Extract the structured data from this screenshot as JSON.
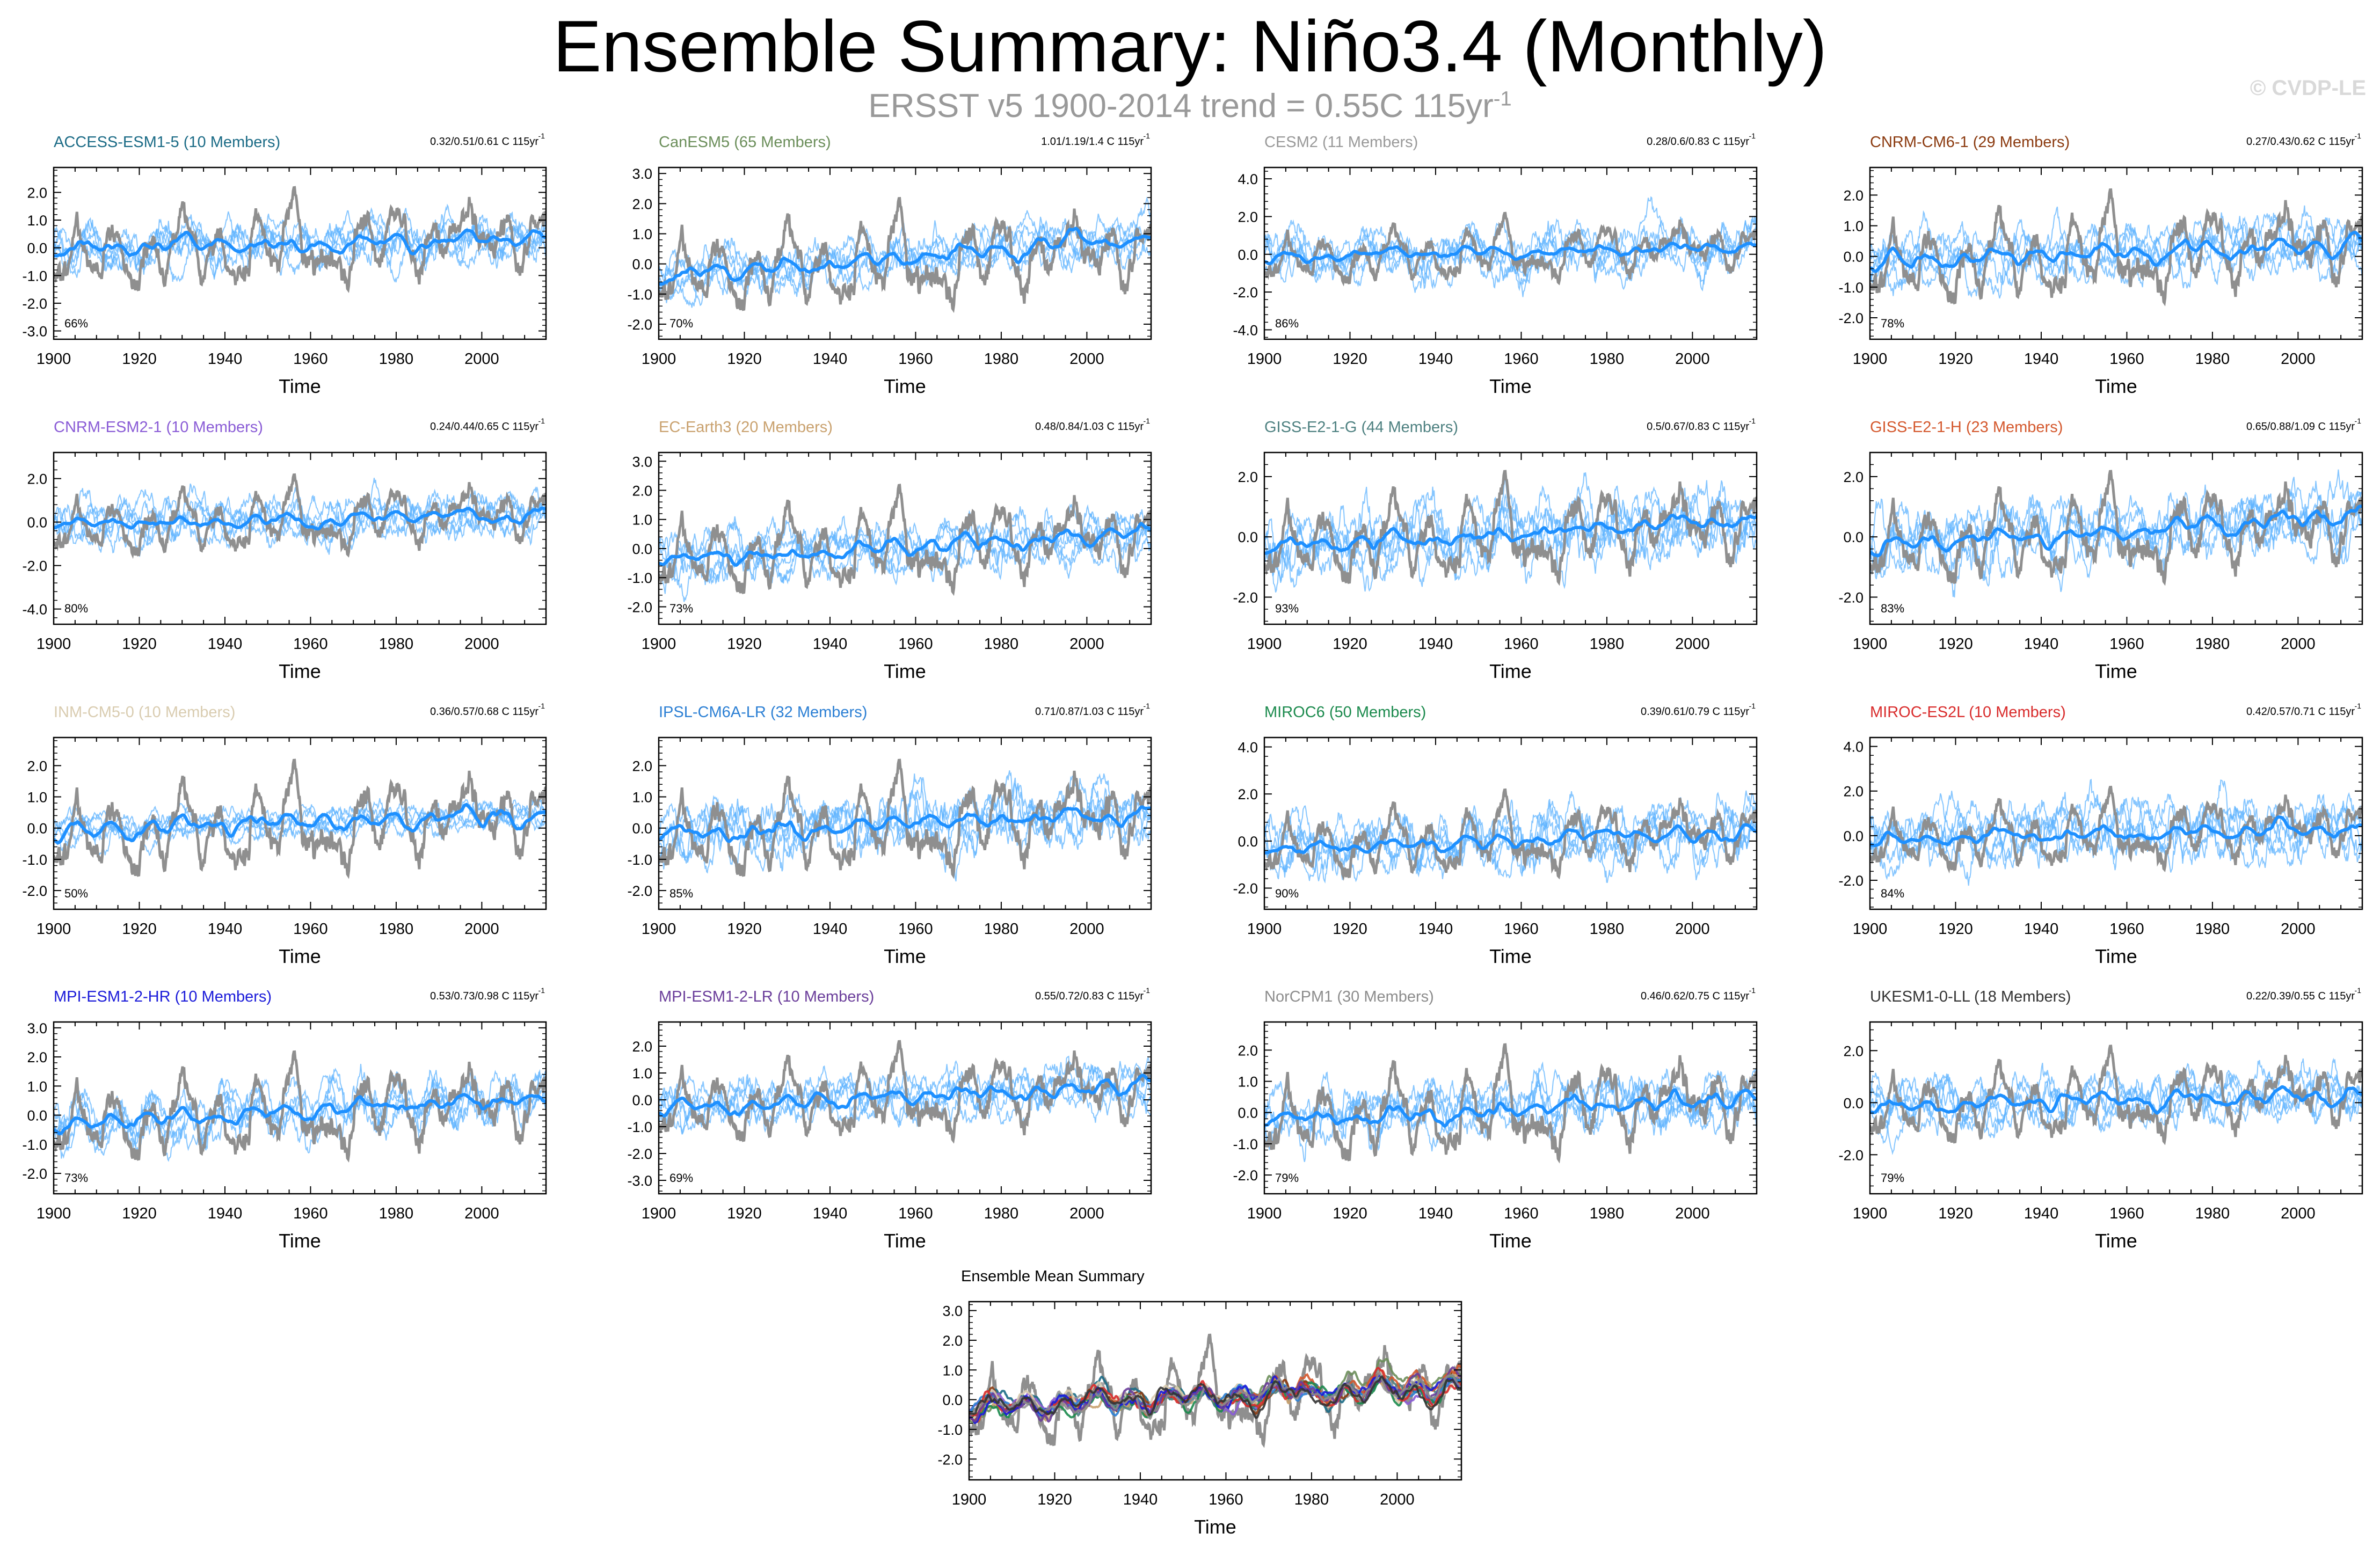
{
  "title": "Ensemble Summary: Niño3.4 (Monthly)",
  "subtitle": "ERSST v5 1900-2014 trend = 0.55C 115yr",
  "subtitle_exp": "-1",
  "copyright": "© CVDP-LE",
  "colors": {
    "obs": "#8f8f8f",
    "member": "#5eb3ff",
    "mean": "#1e90ff",
    "axis": "#000000"
  },
  "chart_data": [
    {
      "type": "line",
      "title": "ACCESS-ESM1-5 (10 Members)",
      "title_color": "#1b6b86",
      "trend_text": "0.32/0.51/0.61 C 115yr",
      "trend_exp": "-1",
      "percent": "66%",
      "xlabel": "Time",
      "xlim": [
        1900,
        2015
      ],
      "xticks": [
        1900,
        1920,
        1940,
        1960,
        1980,
        2000
      ],
      "ylim": [
        -3.3,
        2.9
      ],
      "yticks": [
        -3,
        -2,
        -1,
        0,
        1,
        2
      ],
      "ytick_labels": [
        "-3.0",
        "-2.0",
        "-1.0",
        "0.0",
        "1.0",
        "2.0"
      ],
      "mean_start": -0.05,
      "mean_end": 0.35,
      "spread": 0.9
    },
    {
      "type": "line",
      "title": "CanESM5 (65 Members)",
      "title_color": "#6b8e5a",
      "trend_text": "1.01/1.19/1.4 C 115yr",
      "trend_exp": "-1",
      "percent": "70%",
      "xlabel": "Time",
      "xlim": [
        1900,
        2015
      ],
      "xticks": [
        1900,
        1920,
        1940,
        1960,
        1980,
        2000
      ],
      "ylim": [
        -2.5,
        3.2
      ],
      "yticks": [
        -2,
        -1,
        0,
        1,
        2,
        3
      ],
      "ytick_labels": [
        "-2.0",
        "-1.0",
        "0.0",
        "1.0",
        "2.0",
        "3.0"
      ],
      "mean_start": -0.5,
      "mean_end": 0.9,
      "spread": 0.8
    },
    {
      "type": "line",
      "title": "CESM2 (11 Members)",
      "title_color": "#999999",
      "trend_text": "0.28/0.6/0.83 C 115yr",
      "trend_exp": "-1",
      "percent": "86%",
      "xlabel": "Time",
      "xlim": [
        1900,
        2015
      ],
      "xticks": [
        1900,
        1920,
        1940,
        1960,
        1980,
        2000
      ],
      "ylim": [
        -4.5,
        4.6
      ],
      "yticks": [
        -4,
        -2,
        0,
        2,
        4
      ],
      "ytick_labels": [
        "-4.0",
        "-2.0",
        "0.0",
        "2.0",
        "4.0"
      ],
      "mean_start": -0.2,
      "mean_end": 0.4,
      "spread": 1.4
    },
    {
      "type": "line",
      "title": "CNRM-CM6-1 (29 Members)",
      "title_color": "#8b3a0f",
      "trend_text": "0.27/0.43/0.62 C 115yr",
      "trend_exp": "-1",
      "percent": "78%",
      "xlabel": "Time",
      "xlim": [
        1900,
        2015
      ],
      "xticks": [
        1900,
        1920,
        1940,
        1960,
        1980,
        2000
      ],
      "ylim": [
        -2.7,
        2.9
      ],
      "yticks": [
        -2,
        -1,
        0,
        1,
        2
      ],
      "ytick_labels": [
        "-2.0",
        "-1.0",
        "0.0",
        "1.0",
        "2.0"
      ],
      "mean_start": -0.1,
      "mean_end": 0.35,
      "spread": 0.9
    },
    {
      "type": "line",
      "title": "CNRM-ESM2-1 (10 Members)",
      "title_color": "#8a5cd6",
      "trend_text": "0.24/0.44/0.65 C 115yr",
      "trend_exp": "-1",
      "percent": "80%",
      "xlabel": "Time",
      "xlim": [
        1900,
        2015
      ],
      "xticks": [
        1900,
        1920,
        1940,
        1960,
        1980,
        2000
      ],
      "ylim": [
        -4.7,
        3.2
      ],
      "yticks": [
        -4,
        -2,
        0,
        2
      ],
      "ytick_labels": [
        "-4.0",
        "-2.0",
        "0.0",
        "2.0"
      ],
      "mean_start": -0.1,
      "mean_end": 0.35,
      "spread": 1.1
    },
    {
      "type": "line",
      "title": "EC-Earth3 (20 Members)",
      "title_color": "#c9a16e",
      "trend_text": "0.48/0.84/1.03 C 115yr",
      "trend_exp": "-1",
      "percent": "73%",
      "xlabel": "Time",
      "xlim": [
        1900,
        2015
      ],
      "xticks": [
        1900,
        1920,
        1940,
        1960,
        1980,
        2000
      ],
      "ylim": [
        -2.6,
        3.3
      ],
      "yticks": [
        -2,
        -1,
        0,
        1,
        2,
        3
      ],
      "ytick_labels": [
        "-2.0",
        "-1.0",
        "0.0",
        "1.0",
        "2.0",
        "3.0"
      ],
      "mean_start": -0.4,
      "mean_end": 0.5,
      "spread": 0.9
    },
    {
      "type": "line",
      "title": "GISS-E2-1-G (44 Members)",
      "title_color": "#4d8080",
      "trend_text": "0.5/0.67/0.83 C 115yr",
      "trend_exp": "-1",
      "percent": "93%",
      "xlabel": "Time",
      "xlim": [
        1900,
        2015
      ],
      "xticks": [
        1900,
        1920,
        1940,
        1960,
        1980,
        2000
      ],
      "ylim": [
        -2.9,
        2.8
      ],
      "yticks": [
        -2,
        0,
        2
      ],
      "ytick_labels": [
        "-2.0",
        "0.0",
        "2.0"
      ],
      "mean_start": -0.35,
      "mean_end": 0.6,
      "spread": 1.2
    },
    {
      "type": "line",
      "title": "GISS-E2-1-H (23 Members)",
      "title_color": "#d4582d",
      "trend_text": "0.65/0.88/1.09 C 115yr",
      "trend_exp": "-1",
      "percent": "83%",
      "xlabel": "Time",
      "xlim": [
        1900,
        2015
      ],
      "xticks": [
        1900,
        1920,
        1940,
        1960,
        1980,
        2000
      ],
      "ylim": [
        -2.9,
        2.8
      ],
      "yticks": [
        -2,
        0,
        2
      ],
      "ytick_labels": [
        "-2.0",
        "0.0",
        "2.0"
      ],
      "mean_start": -0.35,
      "mean_end": 0.7,
      "spread": 1.1
    },
    {
      "type": "line",
      "title": "INM-CM5-0 (10 Members)",
      "title_color": "#d9ccb0",
      "trend_text": "0.36/0.57/0.68 C 115yr",
      "trend_exp": "-1",
      "percent": "50%",
      "xlabel": "Time",
      "xlim": [
        1900,
        2015
      ],
      "xticks": [
        1900,
        1920,
        1940,
        1960,
        1980,
        2000
      ],
      "ylim": [
        -2.6,
        2.9
      ],
      "yticks": [
        -2,
        -1,
        0,
        1,
        2
      ],
      "ytick_labels": [
        "-2.0",
        "-1.0",
        "0.0",
        "1.0",
        "2.0"
      ],
      "mean_start": -0.1,
      "mean_end": 0.45,
      "spread": 0.5
    },
    {
      "type": "line",
      "title": "IPSL-CM6A-LR (32 Members)",
      "title_color": "#2b7fd4",
      "trend_text": "0.71/0.87/1.03 C 115yr",
      "trend_exp": "-1",
      "percent": "85%",
      "xlabel": "Time",
      "xlim": [
        1900,
        2015
      ],
      "xticks": [
        1900,
        1920,
        1940,
        1960,
        1980,
        2000
      ],
      "ylim": [
        -2.6,
        2.9
      ],
      "yticks": [
        -2,
        -1,
        0,
        1,
        2
      ],
      "ytick_labels": [
        "-2.0",
        "-1.0",
        "0.0",
        "1.0",
        "2.0"
      ],
      "mean_start": -0.3,
      "mean_end": 0.6,
      "spread": 1.0
    },
    {
      "type": "line",
      "title": "MIROC6 (50 Members)",
      "title_color": "#1b8a4d",
      "trend_text": "0.39/0.61/0.79 C 115yr",
      "trend_exp": "-1",
      "percent": "90%",
      "xlabel": "Time",
      "xlim": [
        1900,
        2015
      ],
      "xticks": [
        1900,
        1920,
        1940,
        1960,
        1980,
        2000
      ],
      "ylim": [
        -2.9,
        4.4
      ],
      "yticks": [
        -2,
        0,
        2,
        4
      ],
      "ytick_labels": [
        "-2.0",
        "0.0",
        "2.0",
        "4.0"
      ],
      "mean_start": -0.3,
      "mean_end": 0.4,
      "spread": 1.3
    },
    {
      "type": "line",
      "title": "MIROC-ES2L (10 Members)",
      "title_color": "#d92b2b",
      "trend_text": "0.42/0.57/0.71 C 115yr",
      "trend_exp": "-1",
      "percent": "84%",
      "xlabel": "Time",
      "xlim": [
        1900,
        2015
      ],
      "xticks": [
        1900,
        1920,
        1940,
        1960,
        1980,
        2000
      ],
      "ylim": [
        -3.3,
        4.4
      ],
      "yticks": [
        -2,
        0,
        2,
        4
      ],
      "ytick_labels": [
        "-2.0",
        "0.0",
        "2.0",
        "4.0"
      ],
      "mean_start": -0.2,
      "mean_end": 0.35,
      "spread": 1.4
    },
    {
      "type": "line",
      "title": "MPI-ESM1-2-HR (10 Members)",
      "title_color": "#1a1ad9",
      "trend_text": "0.53/0.73/0.98 C 115yr",
      "trend_exp": "-1",
      "percent": "73%",
      "xlabel": "Time",
      "xlim": [
        1900,
        2015
      ],
      "xticks": [
        1900,
        1920,
        1940,
        1960,
        1980,
        2000
      ],
      "ylim": [
        -2.7,
        3.2
      ],
      "yticks": [
        -2,
        -1,
        0,
        1,
        2,
        3
      ],
      "ytick_labels": [
        "-2.0",
        "-1.0",
        "0.0",
        "1.0",
        "2.0",
        "3.0"
      ],
      "mean_start": -0.3,
      "mean_end": 0.6,
      "spread": 0.9
    },
    {
      "type": "line",
      "title": "MPI-ESM1-2-LR (10 Members)",
      "title_color": "#6a3d9a",
      "trend_text": "0.55/0.72/0.83 C 115yr",
      "trend_exp": "-1",
      "percent": "69%",
      "xlabel": "Time",
      "xlim": [
        1900,
        2015
      ],
      "xticks": [
        1900,
        1920,
        1940,
        1960,
        1980,
        2000
      ],
      "ylim": [
        -3.5,
        2.9
      ],
      "yticks": [
        -3,
        -2,
        -1,
        0,
        1,
        2
      ],
      "ytick_labels": [
        "-3.0",
        "-2.0",
        "-1.0",
        "0.0",
        "1.0",
        "2.0"
      ],
      "mean_start": -0.3,
      "mean_end": 0.5,
      "spread": 0.9
    },
    {
      "type": "line",
      "title": "NorCPM1 (30 Members)",
      "title_color": "#8c8c8c",
      "trend_text": "0.46/0.62/0.75 C 115yr",
      "trend_exp": "-1",
      "percent": "79%",
      "xlabel": "Time",
      "xlim": [
        1900,
        2015
      ],
      "xticks": [
        1900,
        1920,
        1940,
        1960,
        1980,
        2000
      ],
      "ylim": [
        -2.6,
        2.9
      ],
      "yticks": [
        -2,
        -1,
        0,
        1,
        2
      ],
      "ytick_labels": [
        "-2.0",
        "-1.0",
        "0.0",
        "1.0",
        "2.0"
      ],
      "mean_start": -0.2,
      "mean_end": 0.45,
      "spread": 0.9
    },
    {
      "type": "line",
      "title": "UKESM1-0-LL (18 Members)",
      "title_color": "#333333",
      "trend_text": "0.22/0.39/0.55 C 115yr",
      "trend_exp": "-1",
      "percent": "79%",
      "xlabel": "Time",
      "xlim": [
        1900,
        2015
      ],
      "xticks": [
        1900,
        1920,
        1940,
        1960,
        1980,
        2000
      ],
      "ylim": [
        -3.5,
        3.1
      ],
      "yticks": [
        -2,
        0,
        2
      ],
      "ytick_labels": [
        "-2.0",
        "0.0",
        "2.0"
      ],
      "mean_start": -0.1,
      "mean_end": 0.3,
      "spread": 1.0
    },
    {
      "type": "line",
      "title": "Ensemble Mean Summary",
      "title_color": "#000000",
      "xlabel": "Time",
      "xlim": [
        1900,
        2015
      ],
      "xticks": [
        1900,
        1920,
        1940,
        1960,
        1980,
        2000
      ],
      "ylim": [
        -2.7,
        3.3
      ],
      "yticks": [
        -2,
        -1,
        0,
        1,
        2,
        3
      ],
      "ytick_labels": [
        "-2.0",
        "-1.0",
        "0.0",
        "1.0",
        "2.0",
        "3.0"
      ],
      "series_colors": [
        "#1b6b86",
        "#6b8e5a",
        "#999999",
        "#8b3a0f",
        "#8a5cd6",
        "#c9a16e",
        "#4d8080",
        "#d4582d",
        "#d9ccb0",
        "#2b7fd4",
        "#1b8a4d",
        "#d92b2b",
        "#1a1ad9",
        "#6a3d9a",
        "#8c8c8c",
        "#333333"
      ]
    }
  ]
}
